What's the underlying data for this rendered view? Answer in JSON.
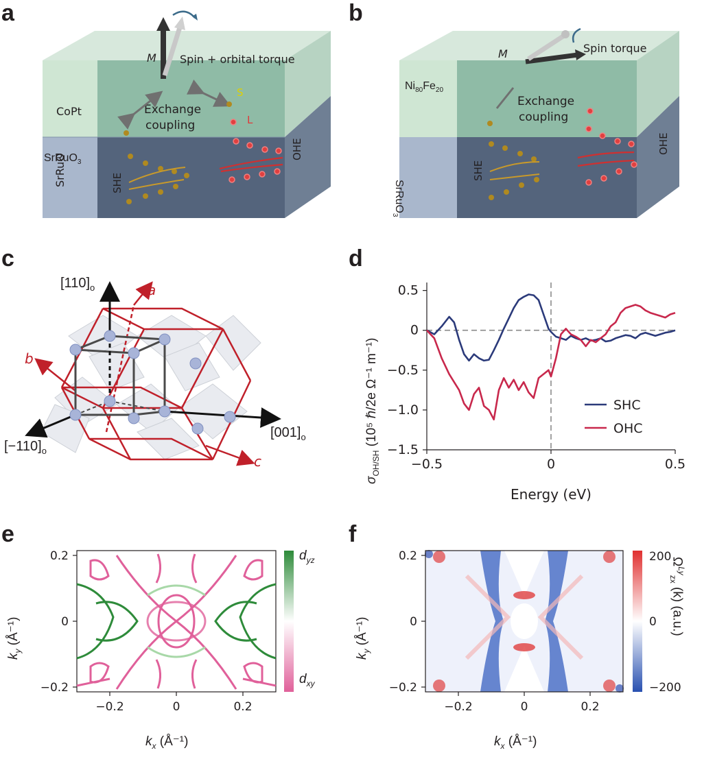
{
  "panel_letters": [
    "a",
    "b",
    "c",
    "d",
    "e",
    "f"
  ],
  "panel_a": {
    "layer_top": "CoPt",
    "layer_bottom_base": "SrRuO",
    "layer_bottom_sub": "3",
    "magnetization": "M",
    "torque": "Spin + orbital torque",
    "exchange_1": "Exchange",
    "exchange_2": "coupling",
    "spin_label": "S",
    "orbital_label": "L",
    "she": "SHE",
    "ohe": "OHE"
  },
  "panel_b": {
    "layer_top_base": "Ni",
    "layer_top_sub1": "80",
    "layer_top_mid": "Fe",
    "layer_top_sub2": "20",
    "layer_bottom_base": "SrRuO",
    "layer_bottom_sub": "3",
    "magnetization": "M",
    "torque": "Spin torque",
    "exchange_1": "Exchange",
    "exchange_2": "coupling",
    "she": "SHE",
    "ohe": "OHE"
  },
  "panel_c": {
    "axis_110": "[110]",
    "axis_m110": "[−110]",
    "axis_001": "[001]",
    "sub_o": "o",
    "axis_a": "a",
    "axis_b": "b",
    "axis_c": "c"
  },
  "chart_data": [
    {
      "panel": "d",
      "type": "line",
      "xlabel": "Energy (eV)",
      "ylabel_sigma": "σ",
      "ylabel_sub": "OH/SH",
      "ylabel_units": "(10⁵ ℏ/2e Ω⁻¹ m⁻¹)",
      "xlim": [
        -0.5,
        0.5
      ],
      "ylim": [
        -1.5,
        0.6
      ],
      "xticks": [
        -0.5,
        0,
        0.5
      ],
      "xtick_labels": [
        "−0.5",
        "0",
        "0.5"
      ],
      "yticks": [
        0.5,
        0,
        -0.5,
        -1.0,
        -1.5
      ],
      "ytick_labels": [
        "0.5",
        "0",
        "−0.5",
        "−1.0",
        "−1.5"
      ],
      "reference_lines": {
        "y": 0,
        "x": 0
      },
      "legend_position": "lower-right",
      "series": [
        {
          "name": "SHC",
          "color": "#2b3a7a",
          "x": [
            -0.5,
            -0.47,
            -0.44,
            -0.41,
            -0.39,
            -0.37,
            -0.35,
            -0.33,
            -0.31,
            -0.29,
            -0.27,
            -0.25,
            -0.23,
            -0.21,
            -0.19,
            -0.17,
            -0.15,
            -0.13,
            -0.11,
            -0.09,
            -0.07,
            -0.05,
            -0.03,
            -0.01,
            0.0,
            0.02,
            0.04,
            0.06,
            0.08,
            0.1,
            0.12,
            0.14,
            0.16,
            0.18,
            0.2,
            0.22,
            0.24,
            0.26,
            0.28,
            0.3,
            0.32,
            0.34,
            0.36,
            0.38,
            0.4,
            0.42,
            0.44,
            0.46,
            0.48,
            0.5
          ],
          "values": [
            0.0,
            -0.05,
            0.05,
            0.17,
            0.1,
            -0.12,
            -0.3,
            -0.38,
            -0.3,
            -0.35,
            -0.38,
            -0.37,
            -0.25,
            -0.12,
            0.02,
            0.15,
            0.28,
            0.38,
            0.42,
            0.45,
            0.44,
            0.38,
            0.2,
            0.02,
            -0.02,
            -0.08,
            -0.1,
            -0.12,
            -0.07,
            -0.1,
            -0.12,
            -0.1,
            -0.13,
            -0.12,
            -0.1,
            -0.14,
            -0.13,
            -0.1,
            -0.08,
            -0.06,
            -0.07,
            -0.1,
            -0.05,
            -0.03,
            -0.05,
            -0.07,
            -0.05,
            -0.03,
            -0.02,
            0.0
          ]
        },
        {
          "name": "OHC",
          "color": "#c8284c",
          "x": [
            -0.5,
            -0.47,
            -0.44,
            -0.41,
            -0.39,
            -0.37,
            -0.35,
            -0.33,
            -0.31,
            -0.29,
            -0.27,
            -0.25,
            -0.23,
            -0.21,
            -0.19,
            -0.17,
            -0.15,
            -0.13,
            -0.11,
            -0.09,
            -0.07,
            -0.05,
            -0.03,
            -0.01,
            0.0,
            0.02,
            0.04,
            0.06,
            0.08,
            0.1,
            0.12,
            0.14,
            0.16,
            0.18,
            0.2,
            0.22,
            0.24,
            0.26,
            0.28,
            0.3,
            0.32,
            0.34,
            0.36,
            0.38,
            0.4,
            0.42,
            0.44,
            0.46,
            0.48,
            0.5
          ],
          "values": [
            0.0,
            -0.1,
            -0.35,
            -0.55,
            -0.65,
            -0.75,
            -0.92,
            -1.0,
            -0.8,
            -0.72,
            -0.95,
            -1.0,
            -1.12,
            -0.75,
            -0.6,
            -0.72,
            -0.62,
            -0.75,
            -0.65,
            -0.78,
            -0.85,
            -0.6,
            -0.55,
            -0.5,
            -0.58,
            -0.35,
            -0.05,
            0.02,
            -0.05,
            -0.08,
            -0.12,
            -0.2,
            -0.12,
            -0.15,
            -0.1,
            -0.05,
            0.05,
            0.1,
            0.22,
            0.28,
            0.3,
            0.32,
            0.3,
            0.25,
            0.22,
            0.2,
            0.18,
            0.16,
            0.2,
            0.22
          ]
        }
      ]
    },
    {
      "panel": "e",
      "type": "heatmap",
      "xlabel": "k",
      "xlabel_sub": "x",
      "xlabel_units": "(Å⁻¹)",
      "ylabel": "k",
      "ylabel_sub": "y",
      "ylabel_units": "(Å⁻¹)",
      "xlim": [
        -0.3,
        0.3
      ],
      "ylim": [
        -0.2,
        0.2
      ],
      "xtick_labels": [
        "−0.2",
        "0",
        "0.2"
      ],
      "ytick_labels": [
        "0.2",
        "0",
        "−0.2"
      ],
      "colorbar_top": "d",
      "colorbar_top_sub": "yz",
      "colorbar_bottom": "d",
      "colorbar_bottom_sub": "xy",
      "colors": {
        "top": "#2e8b3a",
        "middle": "#ffffff",
        "bottom": "#e0609a"
      }
    },
    {
      "panel": "f",
      "type": "heatmap",
      "xlabel": "k",
      "xlabel_sub": "x",
      "xlabel_units": "(Å⁻¹)",
      "ylabel": "k",
      "ylabel_sub": "y",
      "ylabel_units": "(Å⁻¹)",
      "xlim": [
        -0.3,
        0.3
      ],
      "ylim": [
        -0.2,
        0.2
      ],
      "xtick_labels": [
        "−0.2",
        "0",
        "0.2"
      ],
      "ytick_labels": [
        "0.2",
        "0",
        "−0.2"
      ],
      "colorbar_ticks": [
        "200",
        "0",
        "−200"
      ],
      "colorbar_label": "Ω",
      "colorbar_label_sup": "Ly",
      "colorbar_label_sub": "zx",
      "colorbar_label_rest": "(k) (a.u.)",
      "colors": {
        "top": "#e03030",
        "middle": "#ffffff",
        "bottom": "#2850b0"
      }
    }
  ]
}
